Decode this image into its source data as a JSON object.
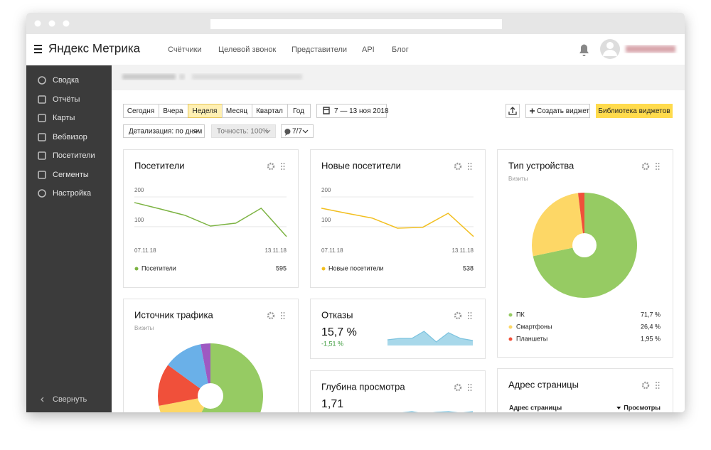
{
  "header": {
    "logo": "Яндекс Метрика",
    "nav": [
      "Счётчики",
      "Целевой звонок",
      "Представители",
      "API",
      "Блог"
    ]
  },
  "sidebar": {
    "items": [
      "Сводка",
      "Отчёты",
      "Карты",
      "Вебвизор",
      "Посетители",
      "Сегменты",
      "Настройка"
    ],
    "collapse": "Свернуть"
  },
  "toolbar": {
    "periods": [
      "Сегодня",
      "Вчера",
      "Неделя",
      "Месяц",
      "Квартал",
      "Год"
    ],
    "active_period": 2,
    "date_range": "7 — 13 ноя 2018",
    "create_widget": "Создать виджет",
    "widget_library": "Библиотека виджетов",
    "detail": "Детализация: по дням",
    "accuracy": "Точность: 100%",
    "filter": "7/7"
  },
  "widgets": [
    {
      "title": "Посетители",
      "total": 595,
      "chart": {
        "type": "line",
        "categories": [
          "07.11.18",
          null,
          null,
          null,
          null,
          null,
          "13.11.18"
        ],
        "series": [
          {
            "name": "Посетители",
            "color": "#7cb342",
            "values": [
              181,
              160,
              138,
              102,
              112,
              162,
              67
            ]
          }
        ],
        "ylim": [
          40,
          220
        ],
        "yticks": [
          100,
          200
        ],
        "grid": true
      }
    },
    {
      "title": "Новые посетители",
      "total": 538,
      "chart": {
        "type": "line",
        "categories": [
          "07.11.18",
          null,
          null,
          null,
          null,
          null,
          "13.11.18"
        ],
        "series": [
          {
            "name": "Новые посетители",
            "color": "#f2bf1f",
            "values": [
              162,
              145,
              129,
              95,
              98,
              145,
              67
            ]
          }
        ],
        "ylim": [
          40,
          220
        ],
        "yticks": [
          100,
          200
        ],
        "grid": true
      }
    },
    {
      "title": "Тип устройства",
      "subtitle": "Визиты",
      "chart": {
        "type": "pie",
        "categories": [
          "ПК",
          "Смартфоны",
          "Планшеты"
        ],
        "values": [
          71.7,
          26.4,
          1.95
        ],
        "value_labels": [
          "71,7 %",
          "26,4 %",
          "1,95 %"
        ],
        "colors": [
          "#96cb63",
          "#fdd766",
          "#f0503a"
        ]
      }
    },
    {
      "title": "Источник трафика",
      "subtitle": "Визиты",
      "chart": {
        "type": "pie",
        "values": [
          58,
          14,
          13,
          12,
          3
        ],
        "colors": [
          "#96cb63",
          "#fdd766",
          "#f0503a",
          "#6ab0e8",
          "#9e59c2"
        ]
      }
    },
    {
      "title": "Отказы",
      "value": "15,7 %",
      "change": "-1,51 %",
      "chart": {
        "type": "area",
        "values": [
          8,
          10,
          10,
          20,
          5,
          18,
          10,
          7
        ],
        "ylim": [
          0,
          25
        ],
        "color": "#a8d8ea"
      }
    },
    {
      "title": "Глубина просмотра",
      "value": "1,71",
      "chart": {
        "type": "area",
        "values": [
          6,
          6,
          8,
          5,
          7,
          8,
          6,
          8
        ],
        "ylim": [
          0,
          25
        ],
        "color": "#a8d8ea"
      }
    },
    {
      "title": "Адрес страницы",
      "columns": [
        "Адрес страницы",
        "Просмотры"
      ]
    }
  ]
}
